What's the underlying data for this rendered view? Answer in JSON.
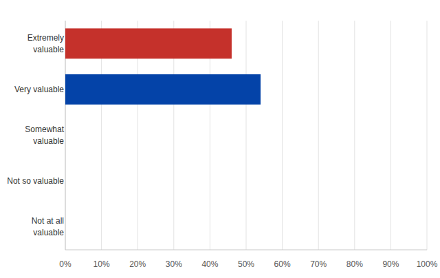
{
  "chart_data": {
    "type": "bar",
    "orientation": "horizontal",
    "categories": [
      "Extremely valuable",
      "Very valuable",
      "Somewhat valuable",
      "Not so valuable",
      "Not at all valuable"
    ],
    "values": [
      46,
      54,
      0,
      0,
      0
    ],
    "colors": [
      "#c5312b",
      "#0443a8",
      "#6fa33a",
      "#f5a623",
      "#7b4fa0"
    ],
    "xlim": [
      0,
      100
    ],
    "xticks": [
      {
        "value": 0,
        "label": "0%"
      },
      {
        "value": 10,
        "label": "10%"
      },
      {
        "value": 20,
        "label": "20%"
      },
      {
        "value": 30,
        "label": "30%"
      },
      {
        "value": 40,
        "label": "40%"
      },
      {
        "value": 50,
        "label": "50%"
      },
      {
        "value": 60,
        "label": "60%"
      },
      {
        "value": 70,
        "label": "70%"
      },
      {
        "value": 80,
        "label": "80%"
      },
      {
        "value": 90,
        "label": "90%"
      },
      {
        "value": 100,
        "label": "100%"
      }
    ],
    "grid": true
  }
}
